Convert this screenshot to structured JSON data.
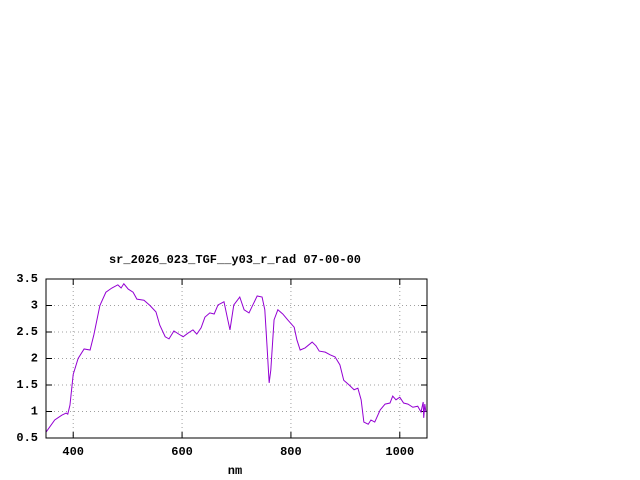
{
  "chart_data": {
    "type": "line",
    "title": "sr_2026_023_TGF__y03_r_rad 07-00-00",
    "x_label": "nm",
    "x": [
      350,
      366,
      379,
      387,
      390,
      394,
      400,
      409,
      420,
      431,
      438,
      449,
      460,
      471,
      482,
      488,
      493,
      501,
      510,
      517,
      530,
      541,
      552,
      559,
      569,
      576,
      585,
      594,
      602,
      611,
      620,
      627,
      635,
      642,
      651,
      659,
      666,
      677,
      684,
      688,
      695,
      706,
      714,
      723,
      730,
      738,
      747,
      752,
      756,
      760,
      763,
      769,
      776,
      785,
      794,
      806,
      811,
      817,
      826,
      839,
      846,
      852,
      863,
      872,
      881,
      890,
      897,
      907,
      916,
      923,
      929,
      934,
      942,
      947,
      954,
      964,
      973,
      982,
      987,
      993,
      1000,
      1007,
      1015,
      1024,
      1033,
      1039,
      1043,
      1044,
      1046,
      1048
    ],
    "series": [
      {
        "name": "sr_2026_023_TGF__y03_r_rad",
        "color": "#9400d3",
        "values": [
          0.61,
          0.84,
          0.93,
          0.97,
          0.95,
          1.12,
          1.7,
          2.0,
          2.18,
          2.16,
          2.45,
          3.0,
          3.25,
          3.33,
          3.39,
          3.33,
          3.41,
          3.31,
          3.25,
          3.12,
          3.1,
          3.0,
          2.88,
          2.63,
          2.41,
          2.37,
          2.52,
          2.46,
          2.41,
          2.48,
          2.54,
          2.46,
          2.58,
          2.78,
          2.86,
          2.84,
          3.01,
          3.07,
          2.73,
          2.54,
          3.01,
          3.16,
          2.92,
          2.86,
          3.01,
          3.18,
          3.16,
          2.92,
          2.25,
          1.54,
          1.78,
          2.73,
          2.92,
          2.84,
          2.73,
          2.59,
          2.35,
          2.16,
          2.2,
          2.31,
          2.24,
          2.14,
          2.12,
          2.07,
          2.03,
          1.88,
          1.59,
          1.5,
          1.41,
          1.44,
          1.22,
          0.8,
          0.76,
          0.84,
          0.8,
          1.03,
          1.14,
          1.16,
          1.29,
          1.22,
          1.27,
          1.16,
          1.14,
          1.08,
          1.1,
          0.99,
          1.18,
          0.88,
          1.14,
          0.99
        ]
      }
    ],
    "xlim": [
      350,
      1050
    ],
    "ylim": [
      0.5,
      3.5
    ],
    "xticks": [
      400,
      600,
      800,
      1000
    ],
    "yticks": [
      0.5,
      1,
      1.5,
      2,
      2.5,
      3,
      3.5
    ],
    "grid": true
  }
}
